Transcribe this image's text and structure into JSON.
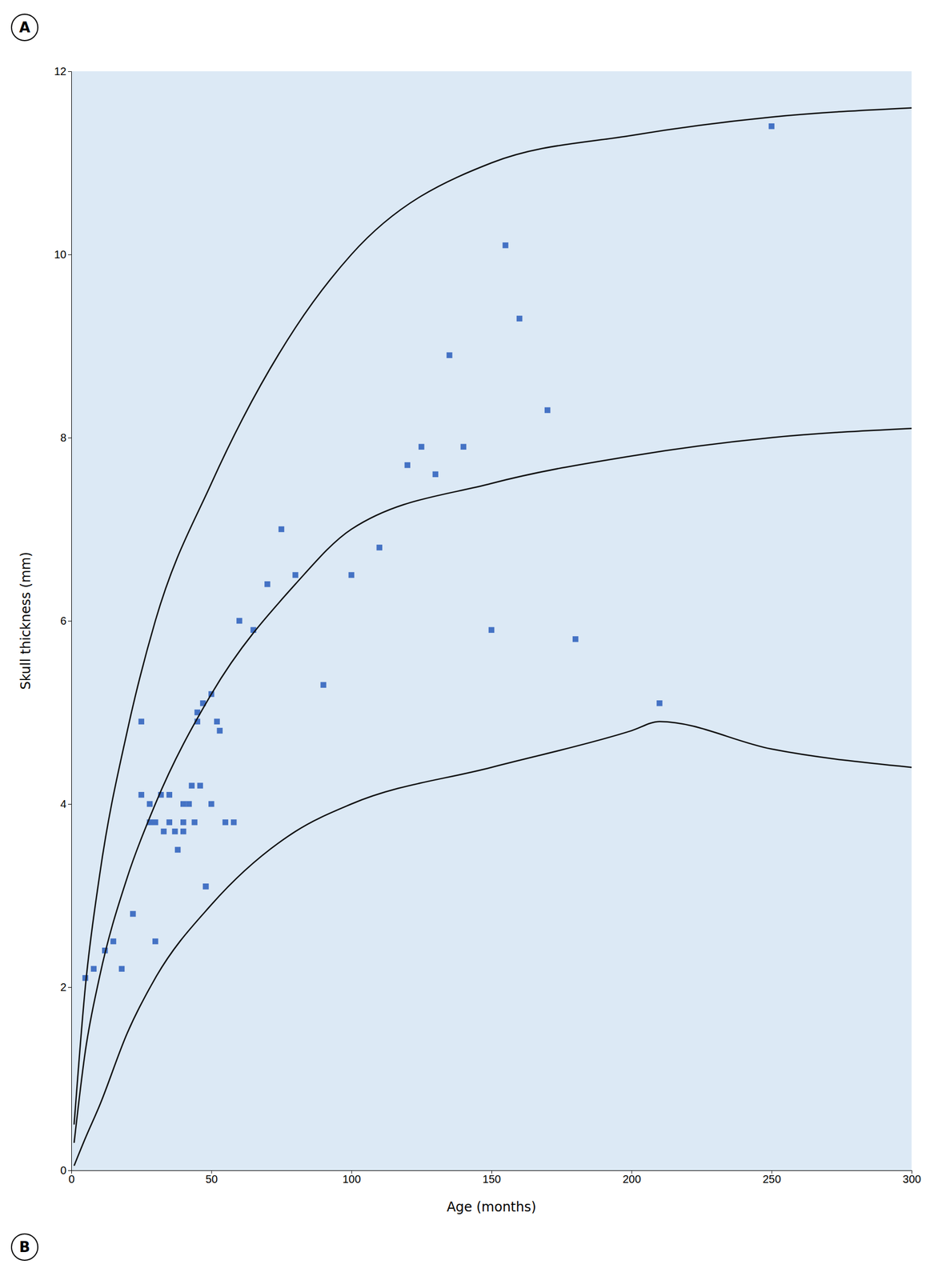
{
  "chart_data": {
    "type": "scatter",
    "xlabel": "Age (months)",
    "ylabel": "Skull thickness (mm)",
    "xlim": [
      0,
      300
    ],
    "ylim": [
      0,
      12
    ],
    "xticks": [
      0,
      50,
      100,
      150,
      200,
      250,
      300
    ],
    "yticks": [
      0,
      2,
      4,
      6,
      8,
      10,
      12
    ],
    "grid": false,
    "annotations": [
      "A",
      "B"
    ],
    "series": [
      {
        "type": "scatter",
        "color": "#4472C4",
        "marker": "square",
        "x": [
          5,
          8,
          12,
          15,
          18,
          22,
          25,
          25,
          28,
          28,
          30,
          30,
          32,
          33,
          35,
          35,
          37,
          38,
          40,
          40,
          40,
          42,
          43,
          44,
          45,
          45,
          46,
          47,
          48,
          48,
          50,
          50,
          52,
          53,
          55,
          58,
          60,
          65,
          70,
          75,
          80,
          90,
          100,
          110,
          120,
          125,
          130,
          135,
          140,
          150,
          155,
          160,
          170,
          180,
          210,
          250
        ],
        "values": [
          2.1,
          2.2,
          2.4,
          2.5,
          2.2,
          2.8,
          4.9,
          4.1,
          4.0,
          3.8,
          2.5,
          3.8,
          4.1,
          3.7,
          4.1,
          3.8,
          3.7,
          3.5,
          3.7,
          3.8,
          4.0,
          4.0,
          4.2,
          3.8,
          5.0,
          4.9,
          4.2,
          5.1,
          3.1,
          3.1,
          4.0,
          5.2,
          4.9,
          4.8,
          3.8,
          3.8,
          6.0,
          5.9,
          6.4,
          7.0,
          6.5,
          5.3,
          6.5,
          6.8,
          7.7,
          7.9,
          7.6,
          8.9,
          7.9,
          5.9,
          10.1,
          9.3,
          8.3,
          5.8,
          5.1,
          11.4
        ]
      },
      {
        "type": "line",
        "color": "#111111",
        "line_style": "solid",
        "x": [
          1,
          5,
          10,
          20,
          30,
          50,
          80,
          100,
          150,
          200,
          250,
          300
        ],
        "values": [
          0.5,
          2.0,
          3.2,
          4.8,
          6.0,
          7.5,
          9.2,
          10.0,
          11.0,
          11.3,
          11.5,
          11.6
        ]
      },
      {
        "type": "line",
        "color": "#111111",
        "line_style": "solid",
        "x": [
          1,
          5,
          10,
          20,
          30,
          50,
          80,
          100,
          150,
          200,
          250,
          300
        ],
        "values": [
          0.3,
          1.3,
          2.1,
          3.2,
          4.0,
          5.2,
          6.4,
          7.0,
          7.5,
          7.8,
          8.0,
          8.1
        ]
      },
      {
        "type": "line",
        "color": "#111111",
        "line_style": "solid",
        "x": [
          1,
          5,
          10,
          20,
          30,
          50,
          80,
          100,
          150,
          200,
          210,
          250,
          300
        ],
        "values": [
          0.05,
          0.35,
          0.7,
          1.5,
          2.1,
          2.9,
          3.7,
          4.0,
          4.4,
          4.8,
          4.9,
          4.6,
          4.4
        ]
      }
    ]
  }
}
